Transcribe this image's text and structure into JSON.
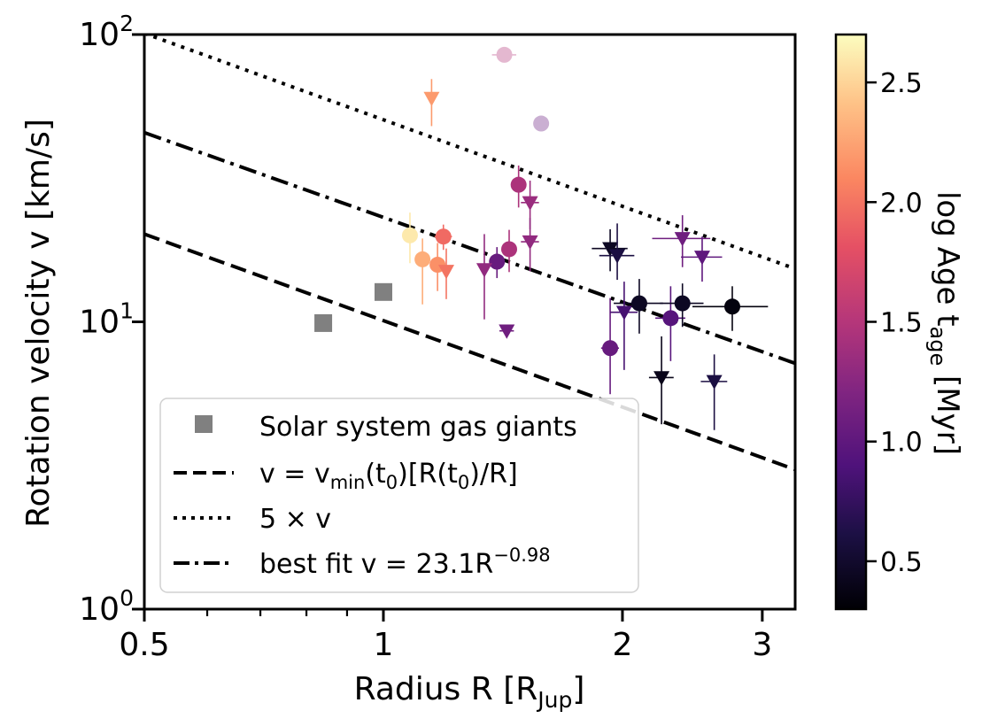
{
  "chart_data": {
    "type": "scatter",
    "xscale": "log",
    "yscale": "log",
    "xlim": [
      0.5,
      3.3
    ],
    "ylim": [
      1,
      100
    ],
    "xlabel": "Radius R [R",
    "xlabel_sub": "Jup",
    "xlabel_end": "]",
    "ylabel": "Rotation velocity v [km/s]",
    "x_ticks": [
      {
        "value": 0.5,
        "label": "0.5"
      },
      {
        "value": 1,
        "label": "1"
      },
      {
        "value": 2,
        "label": "2"
      },
      {
        "value": 3,
        "label": "3"
      }
    ],
    "x_minor_ticks": [
      0.6,
      0.7,
      0.8,
      0.9
    ],
    "y_ticks": [
      {
        "value": 1,
        "base": "10",
        "exp": "0"
      },
      {
        "value": 10,
        "base": "10",
        "exp": "1"
      },
      {
        "value": 100,
        "base": "10",
        "exp": "2"
      }
    ],
    "colorbar": {
      "label_main": "log Age t",
      "label_sub": "age",
      "label_end": " [Myr]",
      "range": [
        0.3,
        2.7
      ],
      "colormap": "magma",
      "ticks": [
        {
          "value": 0.5,
          "label": "0.5"
        },
        {
          "value": 1.0,
          "label": "1.0"
        },
        {
          "value": 1.5,
          "label": "1.5"
        },
        {
          "value": 2.0,
          "label": "2.0"
        },
        {
          "value": 2.5,
          "label": "2.5"
        }
      ]
    },
    "lines": [
      {
        "name": "v_min",
        "style": "dashed",
        "coef": 10.1,
        "exp": -1.0
      },
      {
        "name": "5x",
        "style": "dotted",
        "coef": 50.5,
        "exp": -1.0
      },
      {
        "name": "best_fit",
        "style": "dashdot",
        "coef": 23.1,
        "exp": -0.98
      }
    ],
    "legend": {
      "position": "lower-left",
      "entries": [
        {
          "marker": "square",
          "text": "Solar system gas giants"
        },
        {
          "marker": "dashed",
          "pre": "v = v",
          "sub": "min",
          "mid": "(t",
          "sub2": "0",
          "mid2": ")[R(t",
          "sub3": "0",
          "post": ")/R]"
        },
        {
          "marker": "dotted",
          "pre": "5 × v"
        },
        {
          "marker": "dashdot",
          "pre": "best fit v = 23.1R",
          "sup": "−0.98"
        }
      ]
    },
    "solar_system": [
      {
        "x": 0.84,
        "y": 9.9
      },
      {
        "x": 1.0,
        "y": 12.7
      }
    ],
    "detections": [
      {
        "x": 1.08,
        "y": 20.0,
        "age": 2.6,
        "yerr": [
          4,
          4
        ]
      },
      {
        "x": 1.12,
        "y": 16.5,
        "age": 2.3,
        "yerr": [
          5,
          3
        ]
      },
      {
        "x": 1.17,
        "y": 15.8,
        "age": 2.15,
        "yerr": [
          3,
          3
        ]
      },
      {
        "x": 1.19,
        "y": 19.8,
        "age": 1.95,
        "xerr": [
          0.03,
          0.03
        ],
        "yerr": [
          2,
          2
        ]
      },
      {
        "x": 1.39,
        "y": 16.2,
        "age": 1.05,
        "yerr": [
          2,
          2
        ]
      },
      {
        "x": 1.44,
        "y": 17.9,
        "age": 1.45,
        "yerr": [
          3,
          3
        ]
      },
      {
        "x": 1.48,
        "y": 30.0,
        "age": 1.45,
        "yerr": [
          5,
          5
        ]
      },
      {
        "x": 1.93,
        "y": 8.1,
        "age": 1.05,
        "xerr": [
          0.05,
          0.05
        ],
        "yerr": [
          2.5,
          4
        ]
      },
      {
        "x": 2.1,
        "y": 11.6,
        "age": 0.45,
        "xerr": [
          0.15,
          0.15
        ],
        "yerr": [
          2.5,
          2.5
        ]
      },
      {
        "x": 2.3,
        "y": 10.3,
        "age": 0.95,
        "xerr": [
          0.1,
          0.1
        ],
        "yerr": [
          3,
          3
        ]
      },
      {
        "x": 2.38,
        "y": 11.6,
        "age": 0.45,
        "xerr": [
          0.15,
          0.15
        ],
        "yerr": [
          2,
          2
        ]
      },
      {
        "x": 2.75,
        "y": 11.3,
        "age": 0.35,
        "xerr": [
          0.3,
          0.3
        ],
        "yerr": [
          2,
          2
        ]
      },
      {
        "x": 1.42,
        "y": 85.0,
        "age": 1.5,
        "xerr": [
          0.05,
          0.05
        ],
        "faded": true
      },
      {
        "x": 1.58,
        "y": 49.0,
        "age": 1.05,
        "faded": true
      }
    ],
    "upper_limits": [
      {
        "x": 1.15,
        "y": 60.0,
        "age": 2.2,
        "yerr": [
          12,
          10
        ]
      },
      {
        "x": 1.2,
        "y": 15.0,
        "age": 2.0,
        "yerr": [
          3,
          3
        ]
      },
      {
        "x": 1.34,
        "y": 15.2,
        "age": 1.3,
        "yerr": [
          5,
          5
        ]
      },
      {
        "x": 1.43,
        "y": 9.3,
        "age": 1.1,
        "xerr": [
          0.03,
          0.03
        ]
      },
      {
        "x": 1.53,
        "y": 26.0,
        "age": 1.35,
        "xerr": [
          0.04,
          0.04
        ],
        "yerr": [
          5,
          5
        ]
      },
      {
        "x": 1.53,
        "y": 19.0,
        "age": 1.3,
        "xerr": [
          0.04,
          0.04
        ],
        "yerr": [
          4,
          4
        ]
      },
      {
        "x": 1.93,
        "y": 18.0,
        "age": 0.45,
        "xerr": [
          0.1,
          0.1
        ],
        "yerr": [
          3,
          3
        ]
      },
      {
        "x": 1.97,
        "y": 17.0,
        "age": 0.6,
        "xerr": [
          0.1,
          0.1
        ],
        "yerr": [
          3,
          5
        ]
      },
      {
        "x": 2.01,
        "y": 10.8,
        "age": 0.85,
        "xerr": [
          0.08,
          0.08
        ],
        "yerr": [
          4,
          3
        ]
      },
      {
        "x": 2.24,
        "y": 6.4,
        "age": 0.4,
        "xerr": [
          0.08,
          0.08
        ],
        "yerr": [
          2,
          2.5
        ]
      },
      {
        "x": 2.38,
        "y": 19.5,
        "age": 1.1,
        "xerr": [
          0.2,
          0.2
        ],
        "yerr": [
          4,
          4
        ]
      },
      {
        "x": 2.52,
        "y": 16.8,
        "age": 1.0,
        "xerr": [
          0.15,
          0.15
        ],
        "yerr": [
          3,
          3
        ]
      },
      {
        "x": 2.61,
        "y": 6.2,
        "age": 0.6,
        "xerr": [
          0.1,
          0.1
        ],
        "yerr": [
          2,
          1.5
        ]
      }
    ]
  }
}
